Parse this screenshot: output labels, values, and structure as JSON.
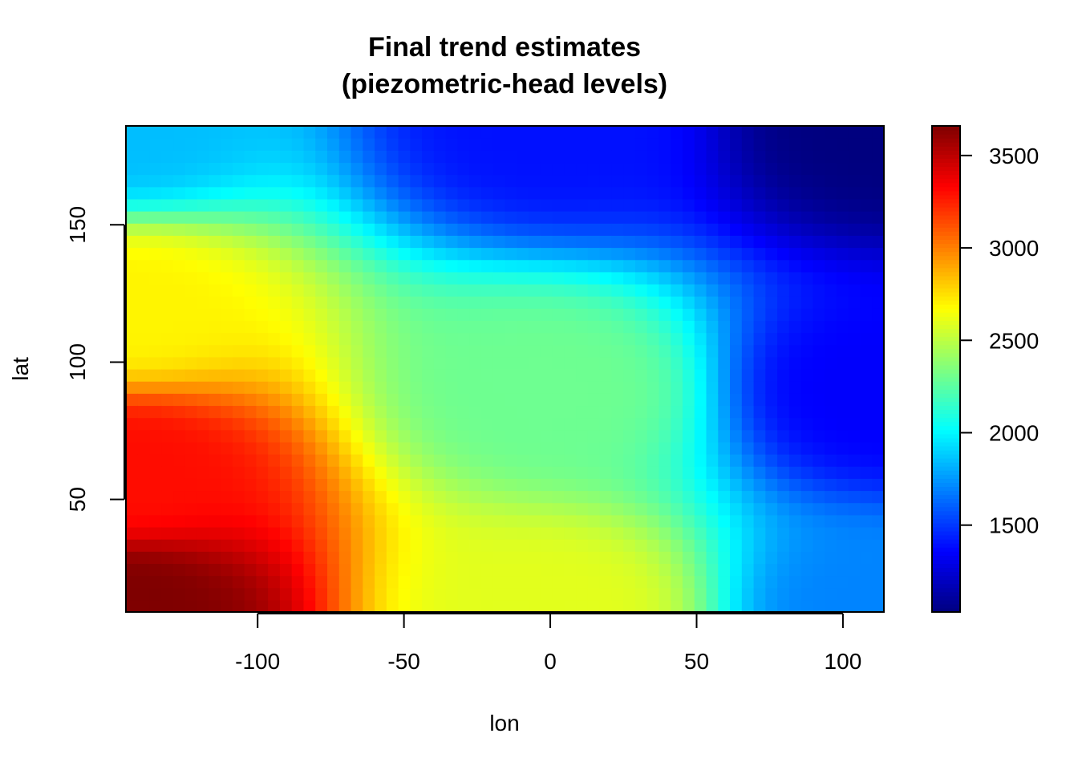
{
  "chart_data": {
    "type": "heatmap",
    "title_lines": [
      "Final trend estimates",
      "(piezometric-head levels)"
    ],
    "xlabel": "lon",
    "ylabel": "lat",
    "xlim": [
      -145,
      114
    ],
    "ylim": [
      9,
      186
    ],
    "x_ticks": [
      -100,
      -50,
      0,
      50,
      100
    ],
    "y_ticks": [
      50,
      100,
      150
    ],
    "x_tick_labels": [
      "-100",
      "-50",
      "0",
      "50",
      "100"
    ],
    "y_tick_labels": [
      "50",
      "100",
      "150"
    ],
    "colorbar": {
      "zlim": [
        1030,
        3660
      ],
      "ticks": [
        1500,
        2000,
        2500,
        3000,
        3500
      ],
      "tick_labels": [
        "1500",
        "2000",
        "2500",
        "3000",
        "3500"
      ],
      "palette": [
        "#00007f",
        "#0000ff",
        "#007fff",
        "#00ffff",
        "#7fff7f",
        "#ffff00",
        "#ff7f00",
        "#ff0000",
        "#7f0000"
      ]
    },
    "surface_samples": [
      {
        "lon": -145,
        "lat": 9,
        "value": 3660
      },
      {
        "lon": -145,
        "lat": 60,
        "value": 3300
      },
      {
        "lon": -145,
        "lat": 120,
        "value": 2700
      },
      {
        "lon": -145,
        "lat": 186,
        "value": 1850
      },
      {
        "lon": 0,
        "lat": 9,
        "value": 2600
      },
      {
        "lon": 0,
        "lat": 90,
        "value": 2300
      },
      {
        "lon": 0,
        "lat": 186,
        "value": 1400
      },
      {
        "lon": 114,
        "lat": 9,
        "value": 1700
      },
      {
        "lon": 114,
        "lat": 90,
        "value": 1350
      },
      {
        "lon": 114,
        "lat": 186,
        "value": 1030
      }
    ]
  }
}
